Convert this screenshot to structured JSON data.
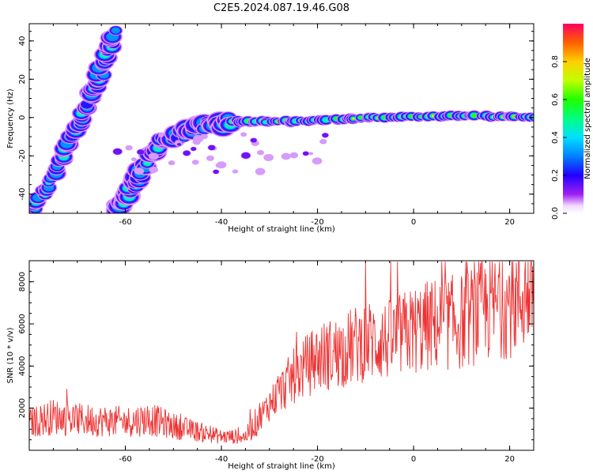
{
  "title": "C2E5.2024.087.19.46.G08",
  "chart_data": [
    {
      "type": "heatmap",
      "xlabel": "Height of straight line (km)",
      "ylabel": "Frequency (Hz)",
      "xlim": [
        -80,
        25
      ],
      "ylim": [
        -50,
        49
      ],
      "x_ticks": [
        -60,
        -40,
        -20,
        0,
        20
      ],
      "y_ticks": [
        -40,
        -20,
        0,
        20,
        40
      ],
      "grid": false,
      "colorbar": {
        "label": "Normalized spectral amplitude",
        "range": [
          0,
          1
        ],
        "ticks": [
          0.0,
          0.2,
          0.4,
          0.6,
          0.8
        ],
        "tick_labels": [
          "0.0",
          "0.2",
          "0.4",
          "0.6",
          "0.8"
        ]
      },
      "features": [
        {
          "name": "steep branch",
          "points": [
            [
              -80,
              -50
            ],
            [
              -76,
              -35
            ],
            [
              -71,
              -10
            ],
            [
              -67,
              10
            ],
            [
              -65,
              25
            ],
            [
              -62,
              45
            ]
          ]
        },
        {
          "name": "main trace",
          "points": [
            [
              -62,
              -50
            ],
            [
              -57,
              -30
            ],
            [
              -52,
              -12
            ],
            [
              -45,
              -5
            ],
            [
              -38,
              -2
            ],
            [
              -25,
              -2
            ],
            [
              -10,
              0
            ],
            [
              10,
              1
            ],
            [
              25,
              0
            ]
          ]
        }
      ]
    },
    {
      "type": "line",
      "xlabel": "Height of straight line (km)",
      "ylabel": "SNR (10 * v/v)",
      "xlim": [
        -80,
        25
      ],
      "ylim": [
        0,
        9000
      ],
      "x_ticks": [
        -60,
        -40,
        -20,
        0,
        20
      ],
      "y_ticks": [
        2000,
        4000,
        6000,
        8000
      ],
      "color": "#ee3333",
      "grid": false,
      "series": [
        {
          "x": [
            -80,
            -75,
            -70,
            -65,
            -60,
            -55,
            -50,
            -45,
            -40,
            -35,
            -30,
            -25,
            -20,
            -15,
            -10,
            -5,
            0,
            5,
            10,
            15,
            20,
            25
          ],
          "y": [
            1300,
            1600,
            1450,
            1400,
            1350,
            1500,
            1150,
            900,
            650,
            650,
            2200,
            3500,
            4400,
            4700,
            5200,
            5200,
            5700,
            6000,
            6100,
            6700,
            7000,
            7700
          ]
        }
      ]
    }
  ]
}
